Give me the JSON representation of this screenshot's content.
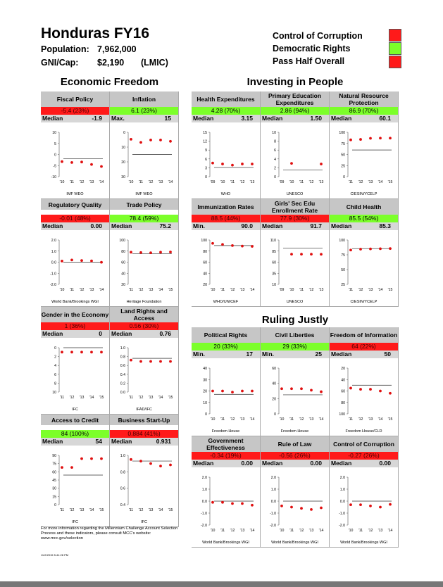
{
  "header": {
    "title": "Honduras FY16",
    "population_label": "Population:",
    "population_value": "7,962,000",
    "gni_label": "GNI/Cap:",
    "gni_value": "$2,190",
    "income_group": "(LMIC)",
    "indicators": [
      {
        "label": "Control of Corruption",
        "status_color": "#ff1a1a"
      },
      {
        "label": "Democratic Rights",
        "status_color": "#7cff2a"
      },
      {
        "label": "Pass Half Overall",
        "status_color": "#ff1a1a"
      }
    ]
  },
  "sections": {
    "economic": "Economic Freedom",
    "investing": "Investing in People",
    "ruling": "Ruling Justly"
  },
  "charts": [
    {
      "title": "Fiscal Policy",
      "score": "-5.4 (23%)",
      "color": "red",
      "median_label": "Median",
      "median": "-1.9",
      "source": "IMF WEO",
      "yticks": [
        "10",
        "5",
        "0",
        "-5",
        "-10"
      ],
      "xticks": [
        "'10",
        "'11",
        "'12",
        "'13",
        "'14"
      ],
      "ymin": -10,
      "ymax": 10,
      "invert": false,
      "values": [
        -3.2,
        -3.6,
        -3.4,
        -4.5,
        -5.4
      ],
      "line": -1.9
    },
    {
      "title": "Inflation",
      "score": "6.1 (23%)",
      "color": "green",
      "median_label": "Max.",
      "median": "15",
      "source": "IMF WEO",
      "yticks": [
        "0",
        "10",
        "20",
        "30"
      ],
      "xticks": [
        "'10",
        "'11",
        "'12",
        "'13",
        "'14"
      ],
      "ymin": 0,
      "ymax": 30,
      "invert": true,
      "values": [
        4.7,
        6.8,
        5.2,
        5.2,
        6.1
      ],
      "line": 15
    },
    {
      "title": "Health Expenditures",
      "score": "4.28 (70%)",
      "color": "green",
      "median_label": "Median",
      "median": "3.15",
      "source": "WHO",
      "yticks": [
        "15",
        "12",
        "9",
        "6",
        "3",
        "0"
      ],
      "xticks": [
        "'09",
        "'10",
        "'11",
        "'12",
        "'13"
      ],
      "ymin": 0,
      "ymax": 15,
      "invert": false,
      "values": [
        4.6,
        4.3,
        3.9,
        4.3,
        4.28
      ],
      "line": 3.15
    },
    {
      "title": "Primary Education Expenditures",
      "score": "2.86 (94%)",
      "color": "green",
      "median_label": "Median",
      "median": "1.50",
      "source": "UNESCO",
      "yticks": [
        "10",
        "8",
        "6",
        "4",
        "2",
        "0"
      ],
      "xticks": [
        "'09",
        "'10",
        "'11",
        "'12",
        "'13"
      ],
      "ymin": 0,
      "ymax": 10,
      "invert": false,
      "values": [
        null,
        3.0,
        null,
        null,
        2.86
      ],
      "line": 1.5
    },
    {
      "title": "Natural Resource Protection",
      "score": "86.9 (70%)",
      "color": "green",
      "median_label": "Median",
      "median": "60.1",
      "source": "CIESIN/YCELP",
      "yticks": [
        "100",
        "75",
        "50",
        "25",
        "0"
      ],
      "xticks": [
        "'11",
        "'12",
        "'13",
        "'14",
        "'15"
      ],
      "ymin": 0,
      "ymax": 100,
      "invert": false,
      "values": [
        83,
        84,
        86.5,
        86.9,
        86.9
      ],
      "line": 60.1
    },
    {
      "title": "Regulatory Quality",
      "score": "-0.01 (48%)",
      "color": "red",
      "median_label": "Median",
      "median": "0.00",
      "source": "World Bank/Brookings WGI",
      "yticks": [
        "2.0",
        "1.0",
        "0.0",
        "-1.0",
        "-2.0"
      ],
      "xticks": [
        "'10",
        "'11",
        "'12",
        "'13",
        "'14"
      ],
      "ymin": -2,
      "ymax": 2,
      "invert": false,
      "values": [
        0.1,
        0.2,
        0.15,
        0.12,
        -0.01
      ],
      "line": 0
    },
    {
      "title": "Trade Policy",
      "score": "78.4 (59%)",
      "color": "green",
      "median_label": "Median",
      "median": "75.2",
      "source": "Heritage Foundation",
      "yticks": [
        "100",
        "80",
        "60",
        "40",
        "20"
      ],
      "xticks": [
        "'11",
        "'12",
        "'13",
        "'14",
        "'15"
      ],
      "ymin": 20,
      "ymax": 100,
      "invert": false,
      "values": [
        78,
        77.5,
        77,
        78,
        78.4
      ],
      "line": 75.2
    },
    {
      "title": "Immunization Rates",
      "score": "88.5 (44%)",
      "color": "red",
      "median_label": "Min.",
      "median": "90.0",
      "source": "WHO/UNICEF",
      "yticks": [
        "100",
        "80",
        "60",
        "40",
        "20"
      ],
      "xticks": [
        "'10",
        "'11",
        "'12",
        "'13",
        "'14"
      ],
      "ymin": 20,
      "ymax": 100,
      "invert": false,
      "values": [
        94,
        92,
        90,
        89,
        88.5
      ],
      "line": 90
    },
    {
      "title": "Girls' Sec Edu Enrollment Rate",
      "score": "77.9 (30%)",
      "color": "red",
      "median_label": "Median",
      "median": "91.7",
      "source": "UNESCO",
      "yticks": [
        "110",
        "85",
        "60",
        "35",
        "10"
      ],
      "xticks": [
        "'09",
        "'10",
        "'11",
        "'12",
        "'13"
      ],
      "ymin": 10,
      "ymax": 110,
      "invert": false,
      "values": [
        null,
        78,
        78,
        78,
        77.9
      ],
      "line": 91.7
    },
    {
      "title": "Child Health",
      "score": "85.5 (54%)",
      "color": "green",
      "median_label": "Median",
      "median": "85.3",
      "source": "CIESIN/YCELP",
      "yticks": [
        "100",
        "75",
        "50",
        "25"
      ],
      "xticks": [
        "'11",
        "'12",
        "'13",
        "'14",
        "'15"
      ],
      "ymin": 25,
      "ymax": 100,
      "invert": false,
      "values": [
        83,
        84.5,
        85,
        85.3,
        85.5
      ],
      "line": 85.3
    },
    {
      "title": "Gender in the Economy",
      "score": "1 (36%)",
      "color": "red",
      "median_label": "Median",
      "median": "0",
      "source": "IFC",
      "yticks": [
        "0",
        "2",
        "4",
        "6",
        "8",
        "10"
      ],
      "xticks": [
        "'11",
        "'12",
        "'13",
        "'14",
        "'15"
      ],
      "ymin": 0,
      "ymax": 10,
      "invert": true,
      "values": [
        1,
        1,
        1,
        1,
        1
      ],
      "line": 0
    },
    {
      "title": "Land Rights and Access",
      "score": "0.56 (30%)",
      "color": "red",
      "median_label": "Median",
      "median": "0.76",
      "source": "IFAD/IFC",
      "yticks": [
        "1.0",
        "0.8",
        "0.6",
        "0.4",
        "0.2",
        "0.0"
      ],
      "xticks": [
        "'11",
        "'12",
        "'13",
        "'14",
        "'15"
      ],
      "ymin": 0,
      "ymax": 1,
      "invert": false,
      "values": [
        0.72,
        0.69,
        0.69,
        0.69,
        0.69
      ],
      "line": 0.76
    },
    {
      "title": "Political Rights",
      "score": "20 (33%)",
      "color": "green",
      "median_label": "Min.",
      "median": "17",
      "source": "Freedom House",
      "yticks": [
        "40",
        "30",
        "20",
        "10",
        "0"
      ],
      "xticks": [
        "'10",
        "'11",
        "'12",
        "'13",
        "'14"
      ],
      "ymin": 0,
      "ymax": 40,
      "invert": false,
      "values": [
        20,
        20,
        19,
        20,
        20
      ],
      "line": 17
    },
    {
      "title": "Civil Liberties",
      "score": "29 (33%)",
      "color": "green",
      "median_label": "Min.",
      "median": "25",
      "source": "Freedom House",
      "yticks": [
        "60",
        "40",
        "20",
        "0"
      ],
      "xticks": [
        "'10",
        "'11",
        "'12",
        "'13",
        "'14"
      ],
      "ymin": 0,
      "ymax": 60,
      "invert": false,
      "values": [
        33,
        33,
        33,
        31,
        29
      ],
      "line": 25
    },
    {
      "title": "Freedom of Information",
      "score": "64 (22%)",
      "color": "red",
      "median_label": "Median",
      "median": "50",
      "source": "Freedom House/CLD",
      "yticks": [
        "20",
        "40",
        "60",
        "80",
        "100"
      ],
      "xticks": [
        "'11",
        "'12",
        "'13",
        "'14",
        "'15"
      ],
      "ymin": 20,
      "ymax": 100,
      "invert": true,
      "values": [
        55,
        57,
        57,
        60,
        64
      ],
      "line": 50
    },
    {
      "title": "Access to Credit",
      "score": "84 (100%)",
      "color": "green",
      "median_label": "Median",
      "median": "54",
      "source": "IFC",
      "yticks": [
        "90",
        "75",
        "60",
        "45",
        "30",
        "15",
        "0"
      ],
      "xticks": [
        "'11",
        "'12",
        "'13",
        "'14",
        "'15"
      ],
      "ymin": 0,
      "ymax": 90,
      "invert": false,
      "values": [
        68,
        68,
        84,
        84,
        84
      ],
      "line": 54
    },
    {
      "title": "Business Start-Up",
      "score": "0.884 (41%)",
      "color": "red",
      "median_label": "Median",
      "median": "0.931",
      "source": "IFC",
      "yticks": [
        "1.0",
        "0.8",
        "0.6",
        "0.4"
      ],
      "xticks": [
        "'11",
        "'12",
        "'13",
        "'14",
        "'15"
      ],
      "ymin": 0.4,
      "ymax": 1,
      "invert": false,
      "values": [
        0.95,
        0.93,
        0.9,
        0.87,
        0.884
      ],
      "line": 0.931
    },
    {
      "title": "Government Effectiveness",
      "score": "-0.34 (19%)",
      "color": "red",
      "median_label": "Median",
      "median": "0.00",
      "source": "World Bank/Brookings WGI",
      "yticks": [
        "2.0",
        "1.0",
        "0.0",
        "-1.0",
        "-2.0"
      ],
      "xticks": [
        "'10",
        "'11",
        "'12",
        "'13",
        "'14"
      ],
      "ymin": -2,
      "ymax": 2,
      "invert": false,
      "values": [
        -0.1,
        -0.1,
        -0.2,
        -0.2,
        -0.34
      ],
      "line": 0
    },
    {
      "title": "Rule of Law",
      "score": "-0.56 (26%)",
      "color": "red",
      "median_label": "Median",
      "median": "0.00",
      "source": "World Bank/Brookings WGI",
      "yticks": [
        "2.0",
        "1.0",
        "0.0",
        "-1.0",
        "-2.0"
      ],
      "xticks": [
        "'10",
        "'11",
        "'12",
        "'13",
        "'14"
      ],
      "ymin": -2,
      "ymax": 2,
      "invert": false,
      "values": [
        -0.4,
        -0.5,
        -0.6,
        -0.7,
        -0.56
      ],
      "line": 0
    },
    {
      "title": "Control of Corruption",
      "score": "-0.27 (26%)",
      "color": "red",
      "median_label": "Median",
      "median": "0.00",
      "source": "World Bank/Brookings WGI",
      "yticks": [
        "2.0",
        "1.0",
        "0.0",
        "-1.0",
        "-2.0"
      ],
      "xticks": [
        "'10",
        "'11",
        "'12",
        "'13",
        "'14"
      ],
      "ymin": -2,
      "ymax": 2,
      "invert": false,
      "values": [
        -0.3,
        -0.3,
        -0.4,
        -0.5,
        -0.27
      ],
      "line": 0
    }
  ],
  "footer": {
    "note": "For more information regarding the Millennium Challenge Account Selection Process and these indicators, please consult MCC's website: www.mcc.gov/selection",
    "timestamp": "11/2/2015 5:41:28 PM"
  }
}
